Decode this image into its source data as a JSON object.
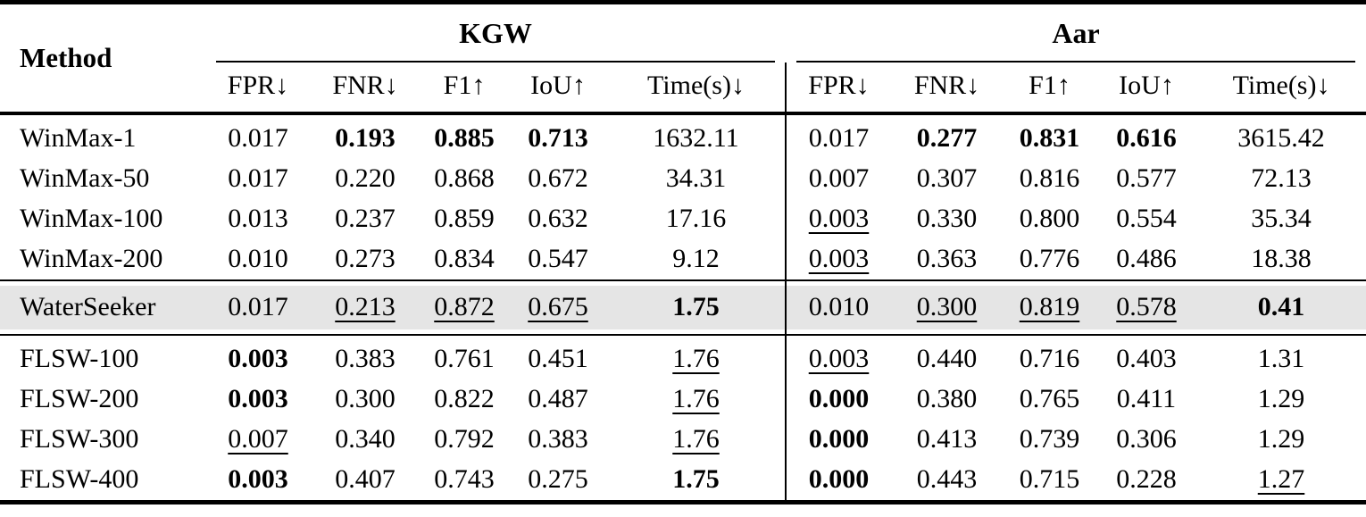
{
  "table": {
    "method_header": "Method",
    "groups": [
      {
        "label": "KGW",
        "subcols": [
          "FPR↓",
          "FNR↓",
          "F1↑",
          "IoU↑",
          "Time(s)↓"
        ]
      },
      {
        "label": "Aar",
        "subcols": [
          "FPR↓",
          "FNR↓",
          "F1↑",
          "IoU↑",
          "Time(s)↓"
        ]
      }
    ],
    "colors": {
      "rule": "#000000",
      "highlight_bg": "#e5e5e5",
      "text": "#000000",
      "background": "#ffffff"
    },
    "style_legend": {
      "n": "normal",
      "b": "bold",
      "u": "underline"
    },
    "rows": [
      {
        "method": "WinMax-1",
        "highlight": false,
        "section_start": true,
        "cells": [
          {
            "v": "0.017",
            "s": "n"
          },
          {
            "v": "0.193",
            "s": "b"
          },
          {
            "v": "0.885",
            "s": "b"
          },
          {
            "v": "0.713",
            "s": "b"
          },
          {
            "v": "1632.11",
            "s": "n"
          },
          {
            "v": "0.017",
            "s": "n"
          },
          {
            "v": "0.277",
            "s": "b"
          },
          {
            "v": "0.831",
            "s": "b"
          },
          {
            "v": "0.616",
            "s": "b"
          },
          {
            "v": "3615.42",
            "s": "n"
          }
        ]
      },
      {
        "method": "WinMax-50",
        "highlight": false,
        "section_start": false,
        "cells": [
          {
            "v": "0.017",
            "s": "n"
          },
          {
            "v": "0.220",
            "s": "n"
          },
          {
            "v": "0.868",
            "s": "n"
          },
          {
            "v": "0.672",
            "s": "n"
          },
          {
            "v": "34.31",
            "s": "n"
          },
          {
            "v": "0.007",
            "s": "n"
          },
          {
            "v": "0.307",
            "s": "n"
          },
          {
            "v": "0.816",
            "s": "n"
          },
          {
            "v": "0.577",
            "s": "n"
          },
          {
            "v": "72.13",
            "s": "n"
          }
        ]
      },
      {
        "method": "WinMax-100",
        "highlight": false,
        "section_start": false,
        "cells": [
          {
            "v": "0.013",
            "s": "n"
          },
          {
            "v": "0.237",
            "s": "n"
          },
          {
            "v": "0.859",
            "s": "n"
          },
          {
            "v": "0.632",
            "s": "n"
          },
          {
            "v": "17.16",
            "s": "n"
          },
          {
            "v": "0.003",
            "s": "u"
          },
          {
            "v": "0.330",
            "s": "n"
          },
          {
            "v": "0.800",
            "s": "n"
          },
          {
            "v": "0.554",
            "s": "n"
          },
          {
            "v": "35.34",
            "s": "n"
          }
        ]
      },
      {
        "method": "WinMax-200",
        "highlight": false,
        "section_start": false,
        "cells": [
          {
            "v": "0.010",
            "s": "n"
          },
          {
            "v": "0.273",
            "s": "n"
          },
          {
            "v": "0.834",
            "s": "n"
          },
          {
            "v": "0.547",
            "s": "n"
          },
          {
            "v": "9.12",
            "s": "n"
          },
          {
            "v": "0.003",
            "s": "u"
          },
          {
            "v": "0.363",
            "s": "n"
          },
          {
            "v": "0.776",
            "s": "n"
          },
          {
            "v": "0.486",
            "s": "n"
          },
          {
            "v": "18.38",
            "s": "n"
          }
        ]
      },
      {
        "method": "WaterSeeker",
        "highlight": true,
        "section_start": false,
        "cells": [
          {
            "v": "0.017",
            "s": "n"
          },
          {
            "v": "0.213",
            "s": "u"
          },
          {
            "v": "0.872",
            "s": "u"
          },
          {
            "v": "0.675",
            "s": "u"
          },
          {
            "v": "1.75",
            "s": "b"
          },
          {
            "v": "0.010",
            "s": "n"
          },
          {
            "v": "0.300",
            "s": "u"
          },
          {
            "v": "0.819",
            "s": "u"
          },
          {
            "v": "0.578",
            "s": "u"
          },
          {
            "v": "0.41",
            "s": "b"
          }
        ]
      },
      {
        "method": "FLSW-100",
        "highlight": false,
        "section_start": true,
        "cells": [
          {
            "v": "0.003",
            "s": "b"
          },
          {
            "v": "0.383",
            "s": "n"
          },
          {
            "v": "0.761",
            "s": "n"
          },
          {
            "v": "0.451",
            "s": "n"
          },
          {
            "v": "1.76",
            "s": "u"
          },
          {
            "v": "0.003",
            "s": "u"
          },
          {
            "v": "0.440",
            "s": "n"
          },
          {
            "v": "0.716",
            "s": "n"
          },
          {
            "v": "0.403",
            "s": "n"
          },
          {
            "v": "1.31",
            "s": "n"
          }
        ]
      },
      {
        "method": "FLSW-200",
        "highlight": false,
        "section_start": false,
        "cells": [
          {
            "v": "0.003",
            "s": "b"
          },
          {
            "v": "0.300",
            "s": "n"
          },
          {
            "v": "0.822",
            "s": "n"
          },
          {
            "v": "0.487",
            "s": "n"
          },
          {
            "v": "1.76",
            "s": "u"
          },
          {
            "v": "0.000",
            "s": "b"
          },
          {
            "v": "0.380",
            "s": "n"
          },
          {
            "v": "0.765",
            "s": "n"
          },
          {
            "v": "0.411",
            "s": "n"
          },
          {
            "v": "1.29",
            "s": "n"
          }
        ]
      },
      {
        "method": "FLSW-300",
        "highlight": false,
        "section_start": false,
        "cells": [
          {
            "v": "0.007",
            "s": "u"
          },
          {
            "v": "0.340",
            "s": "n"
          },
          {
            "v": "0.792",
            "s": "n"
          },
          {
            "v": "0.383",
            "s": "n"
          },
          {
            "v": "1.76",
            "s": "u"
          },
          {
            "v": "0.000",
            "s": "b"
          },
          {
            "v": "0.413",
            "s": "n"
          },
          {
            "v": "0.739",
            "s": "n"
          },
          {
            "v": "0.306",
            "s": "n"
          },
          {
            "v": "1.29",
            "s": "n"
          }
        ]
      },
      {
        "method": "FLSW-400",
        "highlight": false,
        "section_start": false,
        "cells": [
          {
            "v": "0.003",
            "s": "b"
          },
          {
            "v": "0.407",
            "s": "n"
          },
          {
            "v": "0.743",
            "s": "n"
          },
          {
            "v": "0.275",
            "s": "n"
          },
          {
            "v": "1.75",
            "s": "b"
          },
          {
            "v": "0.000",
            "s": "b"
          },
          {
            "v": "0.443",
            "s": "n"
          },
          {
            "v": "0.715",
            "s": "n"
          },
          {
            "v": "0.228",
            "s": "n"
          },
          {
            "v": "1.27",
            "s": "u"
          }
        ]
      }
    ]
  }
}
